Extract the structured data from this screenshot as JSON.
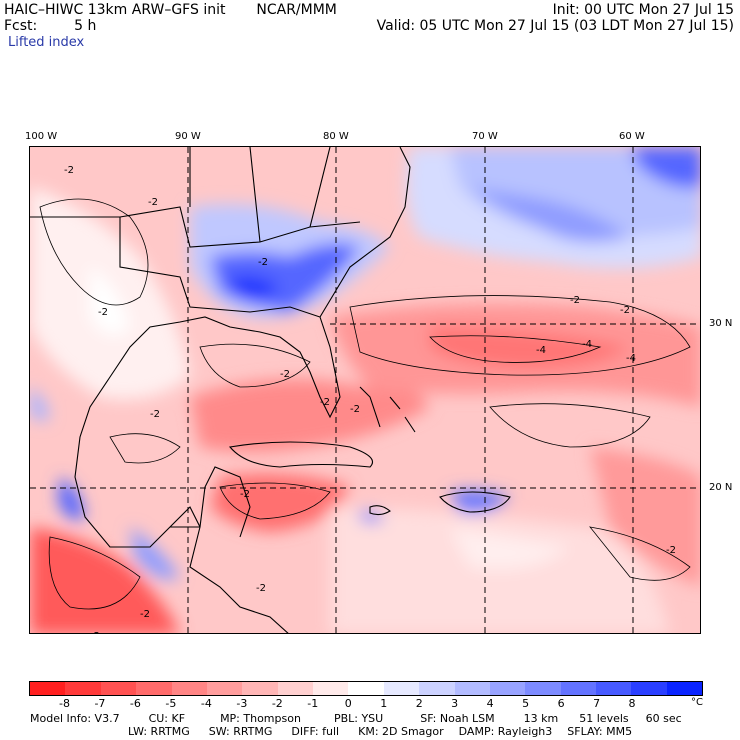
{
  "header": {
    "model": "HAIC–HIWC 13km ARW–GFS init",
    "org": "NCAR/MMM",
    "init": "Init: 00 UTC Mon 27 Jul 15",
    "fcst_label": "Fcst:",
    "fcst_value": "5 h",
    "valid": "Valid: 05 UTC Mon 27 Jul 15 (03 LDT Mon 27 Jul 15)",
    "field": "Lifted index"
  },
  "axes": {
    "lon_labels": [
      "100 W",
      "90 W",
      "80 W",
      "70 W",
      "60 W"
    ],
    "lat_labels": [
      "30 N",
      "20 N"
    ]
  },
  "colorbar": {
    "ticks": [
      "-8",
      "-7",
      "-6",
      "-5",
      "-4",
      "-3",
      "-2",
      "-1",
      "0",
      "1",
      "2",
      "3",
      "4",
      "5",
      "6",
      "7",
      "8"
    ],
    "unit": "°C",
    "colors": [
      "#ff1f1f",
      "#ff3a3a",
      "#ff5252",
      "#ff6b6b",
      "#ff8585",
      "#ff9d9d",
      "#ffb6b6",
      "#ffd0d0",
      "#ffeaea",
      "#ffffff",
      "#e6e9ff",
      "#ccd2ff",
      "#b2bbff",
      "#98a3ff",
      "#7d8bff",
      "#6373ff",
      "#475aff",
      "#2a3fff",
      "#0a24ff"
    ]
  },
  "contour_labels": [
    "-2",
    "-2",
    "-2",
    "-2",
    "-2",
    "-2",
    "-2",
    "-2",
    "-2",
    "-2",
    "-2",
    "-2",
    "-4",
    "-4",
    "-4",
    "-2",
    "-2",
    "-2"
  ],
  "footer": {
    "line1": [
      "Model Info: V3.7",
      "CU: KF",
      "MP: Thompson",
      "PBL: YSU",
      "SF: Noah LSM",
      "13 km",
      "51 levels",
      "60 sec"
    ],
    "line2": [
      "LW: RRTMG",
      "SW: RRTMG",
      "DIFF: full",
      "KM: 2D Smagor",
      "DAMP: Rayleigh3",
      "SFLAY: MM5"
    ]
  }
}
